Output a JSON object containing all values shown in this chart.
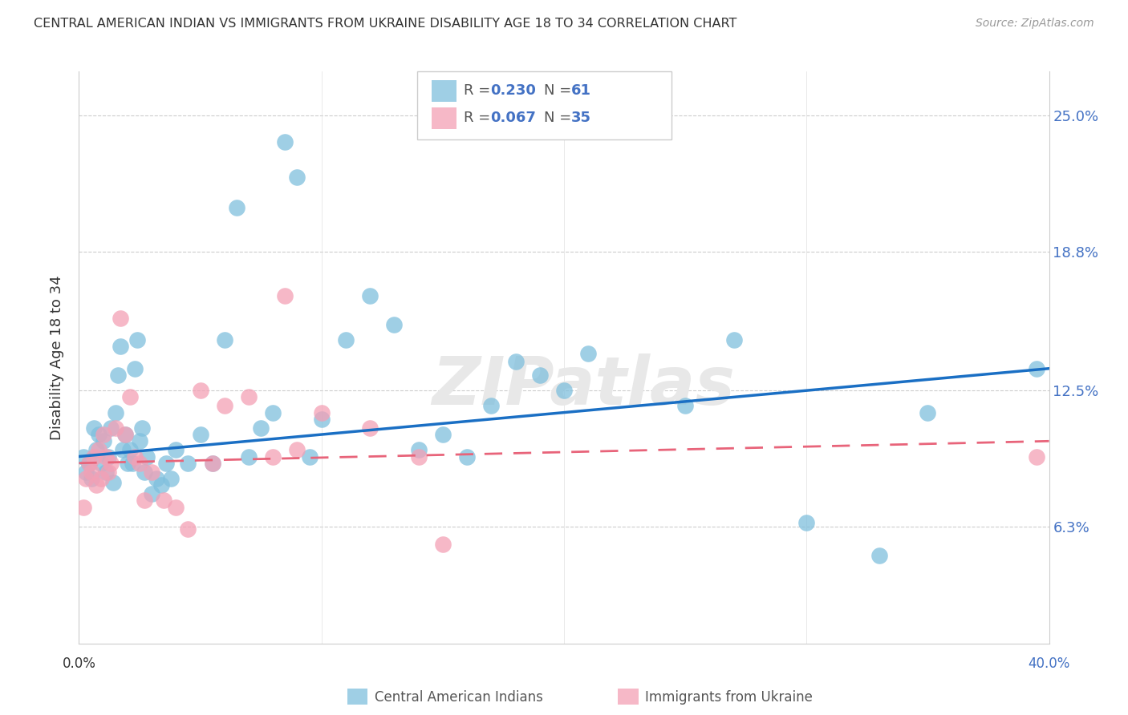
{
  "title": "CENTRAL AMERICAN INDIAN VS IMMIGRANTS FROM UKRAINE DISABILITY AGE 18 TO 34 CORRELATION CHART",
  "source": "Source: ZipAtlas.com",
  "ylabel": "Disability Age 18 to 34",
  "ytick_labels": [
    "6.3%",
    "12.5%",
    "18.8%",
    "25.0%"
  ],
  "ytick_values": [
    6.3,
    12.5,
    18.8,
    25.0
  ],
  "xlim": [
    0.0,
    40.0
  ],
  "ylim": [
    1.0,
    27.0
  ],
  "color_blue": "#7fbfdd",
  "color_pink": "#f4a0b5",
  "line_blue": "#1a6fc4",
  "line_pink": "#e8647a",
  "watermark": "ZIPatlas",
  "blue_points": [
    [
      0.2,
      9.5
    ],
    [
      0.3,
      8.8
    ],
    [
      0.4,
      9.2
    ],
    [
      0.5,
      8.5
    ],
    [
      0.6,
      10.8
    ],
    [
      0.7,
      9.8
    ],
    [
      0.8,
      10.5
    ],
    [
      0.9,
      9.2
    ],
    [
      1.0,
      10.2
    ],
    [
      1.1,
      8.8
    ],
    [
      1.2,
      9.5
    ],
    [
      1.3,
      10.8
    ],
    [
      1.4,
      8.3
    ],
    [
      1.5,
      11.5
    ],
    [
      1.6,
      13.2
    ],
    [
      1.7,
      14.5
    ],
    [
      1.8,
      9.8
    ],
    [
      1.9,
      10.5
    ],
    [
      2.0,
      9.2
    ],
    [
      2.1,
      9.8
    ],
    [
      2.2,
      9.2
    ],
    [
      2.3,
      13.5
    ],
    [
      2.4,
      14.8
    ],
    [
      2.5,
      10.2
    ],
    [
      2.6,
      10.8
    ],
    [
      2.7,
      8.8
    ],
    [
      2.8,
      9.5
    ],
    [
      3.0,
      7.8
    ],
    [
      3.2,
      8.5
    ],
    [
      3.4,
      8.2
    ],
    [
      3.6,
      9.2
    ],
    [
      3.8,
      8.5
    ],
    [
      4.0,
      9.8
    ],
    [
      4.5,
      9.2
    ],
    [
      5.0,
      10.5
    ],
    [
      5.5,
      9.2
    ],
    [
      6.0,
      14.8
    ],
    [
      6.5,
      20.8
    ],
    [
      7.0,
      9.5
    ],
    [
      7.5,
      10.8
    ],
    [
      8.0,
      11.5
    ],
    [
      8.5,
      23.8
    ],
    [
      9.0,
      22.2
    ],
    [
      9.5,
      9.5
    ],
    [
      10.0,
      11.2
    ],
    [
      11.0,
      14.8
    ],
    [
      12.0,
      16.8
    ],
    [
      13.0,
      15.5
    ],
    [
      14.0,
      9.8
    ],
    [
      15.0,
      10.5
    ],
    [
      16.0,
      9.5
    ],
    [
      17.0,
      11.8
    ],
    [
      18.0,
      13.8
    ],
    [
      19.0,
      13.2
    ],
    [
      20.0,
      12.5
    ],
    [
      21.0,
      14.2
    ],
    [
      25.0,
      11.8
    ],
    [
      27.0,
      14.8
    ],
    [
      30.0,
      6.5
    ],
    [
      33.0,
      5.0
    ],
    [
      35.0,
      11.5
    ],
    [
      39.5,
      13.5
    ]
  ],
  "pink_points": [
    [
      0.2,
      7.2
    ],
    [
      0.3,
      8.5
    ],
    [
      0.4,
      9.2
    ],
    [
      0.5,
      8.8
    ],
    [
      0.6,
      9.5
    ],
    [
      0.7,
      8.2
    ],
    [
      0.8,
      9.8
    ],
    [
      0.9,
      8.5
    ],
    [
      1.0,
      10.5
    ],
    [
      1.1,
      9.5
    ],
    [
      1.2,
      8.8
    ],
    [
      1.3,
      9.2
    ],
    [
      1.5,
      10.8
    ],
    [
      1.7,
      15.8
    ],
    [
      1.9,
      10.5
    ],
    [
      2.1,
      12.2
    ],
    [
      2.3,
      9.5
    ],
    [
      2.5,
      9.2
    ],
    [
      2.7,
      7.5
    ],
    [
      3.0,
      8.8
    ],
    [
      3.5,
      7.5
    ],
    [
      4.0,
      7.2
    ],
    [
      4.5,
      6.2
    ],
    [
      5.0,
      12.5
    ],
    [
      5.5,
      9.2
    ],
    [
      6.0,
      11.8
    ],
    [
      7.0,
      12.2
    ],
    [
      8.0,
      9.5
    ],
    [
      8.5,
      16.8
    ],
    [
      9.0,
      9.8
    ],
    [
      10.0,
      11.5
    ],
    [
      12.0,
      10.8
    ],
    [
      14.0,
      9.5
    ],
    [
      15.0,
      5.5
    ],
    [
      39.5,
      9.5
    ]
  ],
  "blue_trend": [
    0.0,
    40.0,
    9.5,
    13.5
  ],
  "pink_trend": [
    0.0,
    40.0,
    9.2,
    10.2
  ]
}
